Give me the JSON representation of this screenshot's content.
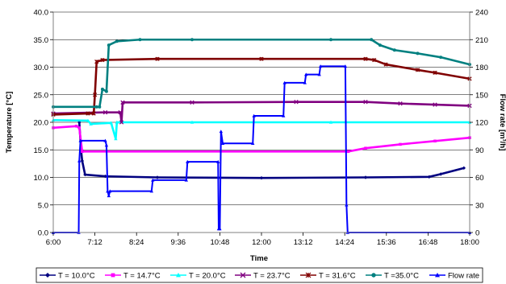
{
  "chart_data": {
    "type": "line",
    "title": "",
    "xlabel": "Time",
    "ylabel": "Temperature [°C]",
    "y2label": "Flow rate [m³/h]",
    "xlim": [
      "6:00",
      "18:00"
    ],
    "xticks": [
      "6:00",
      "7:12",
      "8:24",
      "9:36",
      "10:48",
      "12:00",
      "13:12",
      "14:24",
      "15:36",
      "16:48",
      "18:00"
    ],
    "ylim": [
      0,
      40
    ],
    "yticks": [
      "0.0",
      "5.0",
      "10.0",
      "15.0",
      "20.0",
      "25.0",
      "30.0",
      "35.0",
      "40.0"
    ],
    "y2lim": [
      0,
      240
    ],
    "y2ticks": [
      "0",
      "30",
      "60",
      "90",
      "120",
      "150",
      "180",
      "210",
      "240"
    ],
    "grid": "horizontal",
    "legend_position": "bottom",
    "series": [
      {
        "name": "T = 10.0°C",
        "axis": "left",
        "color": "#000080",
        "marker": "diamond",
        "points": [
          [
            "6:45",
            20.0
          ],
          [
            "6:48",
            15.0
          ],
          [
            "6:50",
            13.0
          ],
          [
            "6:55",
            10.5
          ],
          [
            "7:30",
            10.2
          ],
          [
            "9:00",
            10.0
          ],
          [
            "12:00",
            9.9
          ],
          [
            "15:00",
            10.0
          ],
          [
            "16:50",
            10.1
          ],
          [
            "17:10",
            10.6
          ],
          [
            "17:50",
            11.7
          ]
        ]
      },
      {
        "name": "T = 14.7°C",
        "axis": "left",
        "color": "#FF00FF",
        "marker": "square",
        "points": [
          [
            "6:00",
            19.0
          ],
          [
            "6:40",
            19.3
          ],
          [
            "6:45",
            19.0
          ],
          [
            "6:50",
            14.7
          ],
          [
            "14:30",
            14.7
          ],
          [
            "15:00",
            15.3
          ],
          [
            "16:00",
            16.0
          ],
          [
            "17:00",
            16.6
          ],
          [
            "18:00",
            17.2
          ]
        ]
      },
      {
        "name": "T = 20.0°C",
        "axis": "left",
        "color": "#00FFFF",
        "marker": "triangle",
        "points": [
          [
            "6:00",
            20.4
          ],
          [
            "7:00",
            20.3
          ],
          [
            "7:05",
            19.7
          ],
          [
            "7:40",
            19.9
          ],
          [
            "7:48",
            17.0
          ],
          [
            "7:50",
            20.0
          ],
          [
            "10:00",
            20.0
          ],
          [
            "14:00",
            20.0
          ],
          [
            "18:00",
            20.0
          ]
        ]
      },
      {
        "name": "T = 23.7°C",
        "axis": "left",
        "color": "#800080",
        "marker": "x",
        "points": [
          [
            "6:00",
            21.6
          ],
          [
            "7:30",
            21.8
          ],
          [
            "7:56",
            21.8
          ],
          [
            "7:58",
            20.0
          ],
          [
            "8:00",
            23.6
          ],
          [
            "10:00",
            23.6
          ],
          [
            "13:00",
            23.7
          ],
          [
            "15:00",
            23.7
          ],
          [
            "16:00",
            23.4
          ],
          [
            "17:00",
            23.2
          ],
          [
            "18:00",
            23.0
          ]
        ]
      },
      {
        "name": "T = 31.6°C",
        "axis": "left",
        "color": "#800000",
        "marker": "star",
        "points": [
          [
            "6:00",
            21.4
          ],
          [
            "7:00",
            21.6
          ],
          [
            "7:10",
            21.6
          ],
          [
            "7:12",
            25.0
          ],
          [
            "7:15",
            31.0
          ],
          [
            "7:25",
            31.3
          ],
          [
            "9:00",
            31.5
          ],
          [
            "12:00",
            31.5
          ],
          [
            "15:00",
            31.5
          ],
          [
            "15:15",
            31.3
          ],
          [
            "15:35",
            30.5
          ],
          [
            "16:30",
            29.5
          ],
          [
            "17:00",
            29.0
          ],
          [
            "18:00",
            27.9
          ]
        ]
      },
      {
        "name": "T =35.0°C",
        "axis": "left",
        "color": "#008080",
        "marker": "circle",
        "points": [
          [
            "6:00",
            22.8
          ],
          [
            "7:15",
            22.8
          ],
          [
            "7:20",
            22.8
          ],
          [
            "7:25",
            26.0
          ],
          [
            "7:32",
            25.6
          ],
          [
            "7:36",
            34.0
          ],
          [
            "7:50",
            34.7
          ],
          [
            "8:30",
            35.0
          ],
          [
            "10:00",
            35.0
          ],
          [
            "14:00",
            35.0
          ],
          [
            "15:10",
            35.0
          ],
          [
            "15:25",
            34.0
          ],
          [
            "15:50",
            33.1
          ],
          [
            "16:30",
            32.5
          ],
          [
            "17:10",
            31.8
          ],
          [
            "18:00",
            30.5
          ]
        ]
      },
      {
        "name": "Flow rate",
        "axis": "right",
        "color": "#0000FF",
        "marker": "triangle",
        "points": [
          [
            "6:00",
            0
          ],
          [
            "6:44",
            0
          ],
          [
            "6:45",
            78
          ],
          [
            "6:47",
            100
          ],
          [
            "7:30",
            100
          ],
          [
            "7:32",
            95
          ],
          [
            "7:34",
            45
          ],
          [
            "7:36",
            40
          ],
          [
            "7:38",
            45
          ],
          [
            "8:50",
            45
          ],
          [
            "8:52",
            57
          ],
          [
            "9:50",
            57
          ],
          [
            "9:52",
            77
          ],
          [
            "10:45",
            77
          ],
          [
            "10:46",
            4
          ],
          [
            "10:48",
            4
          ],
          [
            "10:50",
            110
          ],
          [
            "10:53",
            97
          ],
          [
            "11:45",
            97
          ],
          [
            "11:47",
            127
          ],
          [
            "12:38",
            127
          ],
          [
            "12:40",
            163
          ],
          [
            "13:15",
            163
          ],
          [
            "13:17",
            172
          ],
          [
            "13:40",
            172
          ],
          [
            "13:42",
            181
          ],
          [
            "14:25",
            181
          ],
          [
            "14:27",
            30
          ],
          [
            "14:29",
            0
          ],
          [
            "18:00",
            0
          ]
        ]
      }
    ]
  }
}
